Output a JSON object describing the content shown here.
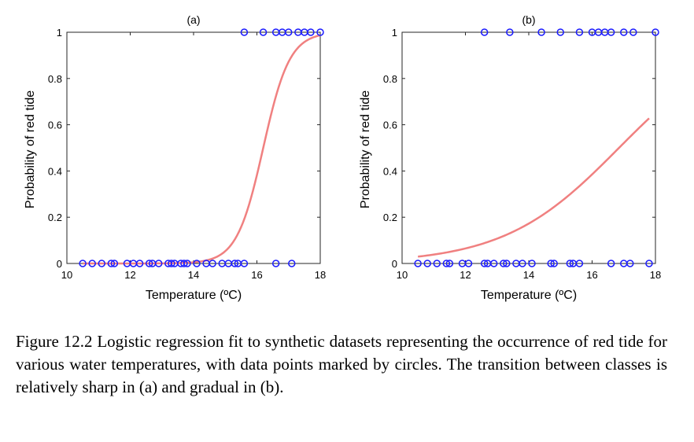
{
  "chart_data": [
    {
      "type": "scatter",
      "panel": "a",
      "title": "(a)",
      "xlabel": "Temperature (ºC)",
      "ylabel": "Probability of red tide",
      "xlim": [
        10,
        18
      ],
      "ylim": [
        0,
        1
      ],
      "xticks": [
        "10",
        "12",
        "14",
        "16",
        "18"
      ],
      "yticks": [
        "0",
        "0.2",
        "0.4",
        "0.6",
        "0.8",
        "1"
      ],
      "grid": false,
      "points_y0": [
        10.5,
        10.8,
        11.1,
        11.4,
        11.5,
        11.9,
        12.1,
        12.3,
        12.6,
        12.7,
        12.9,
        13.2,
        13.3,
        13.4,
        13.6,
        13.7,
        13.8,
        14.1,
        14.4,
        14.6,
        14.9,
        15.1,
        15.3,
        15.4,
        15.6,
        16.6,
        17.1
      ],
      "points_y1": [
        15.6,
        16.2,
        16.6,
        16.8,
        17.0,
        17.3,
        17.5,
        17.7,
        18.0
      ],
      "curve": {
        "type": "logistic",
        "x0": 16.2,
        "k": 2.4,
        "x_range": [
          10.5,
          18.0
        ]
      },
      "curve_color": "#f08080",
      "marker_color": "#1a1aff"
    },
    {
      "type": "scatter",
      "panel": "b",
      "title": "(b)",
      "xlabel": "Temperature (ºC)",
      "ylabel": "Probability of red tide",
      "xlim": [
        10,
        18
      ],
      "ylim": [
        0,
        1
      ],
      "xticks": [
        "10",
        "12",
        "14",
        "16",
        "18"
      ],
      "yticks": [
        "0",
        "0.2",
        "0.4",
        "0.6",
        "0.8",
        "1"
      ],
      "grid": false,
      "points_y0": [
        10.5,
        10.8,
        11.1,
        11.4,
        11.5,
        11.9,
        12.1,
        12.6,
        12.7,
        12.9,
        13.2,
        13.3,
        13.6,
        13.8,
        14.1,
        14.7,
        14.8,
        15.3,
        15.4,
        15.6,
        16.6,
        17.0,
        17.2,
        17.8
      ],
      "points_y1": [
        12.6,
        13.4,
        14.4,
        15.0,
        15.6,
        16.0,
        16.2,
        16.4,
        16.6,
        17.0,
        17.3,
        18.0
      ],
      "curve": {
        "type": "logistic",
        "x0": 16.85,
        "k": 0.55,
        "x_range": [
          10.5,
          17.8
        ]
      },
      "curve_color": "#f08080",
      "marker_color": "#1a1aff"
    }
  ],
  "caption": "Figure 12.2 Logistic regression fit to synthetic datasets representing the occurrence of red tide for various water temperatures, with data points marked by circles. The transition between classes is relatively sharp in (a) and gradual in (b)."
}
